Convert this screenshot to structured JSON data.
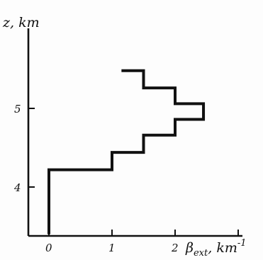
{
  "chart_data": {
    "type": "line",
    "step": true,
    "title": "",
    "ylabel": "z, km",
    "xlabel_main": "β",
    "xlabel_sub": "ext",
    "xlabel_rest": ", km",
    "xlabel_sup": "-1",
    "xlim": [
      0,
      3
    ],
    "ylim": [
      3.4,
      5.95
    ],
    "xticks": [
      0,
      1,
      2,
      3
    ],
    "xtick_labels": [
      "0",
      "1",
      "2",
      ""
    ],
    "yticks": [
      4,
      5
    ],
    "ytick_labels": [
      "4",
      "5"
    ],
    "grid": false,
    "series": [
      {
        "points": [
          [
            0.0,
            3.4
          ],
          [
            0.0,
            4.22
          ],
          [
            1.0,
            4.22
          ],
          [
            1.0,
            4.44
          ],
          [
            1.5,
            4.44
          ],
          [
            1.5,
            4.66
          ],
          [
            2.0,
            4.66
          ],
          [
            2.0,
            4.86
          ],
          [
            2.45,
            4.86
          ],
          [
            2.45,
            5.06
          ],
          [
            2.0,
            5.06
          ],
          [
            2.0,
            5.26
          ],
          [
            1.5,
            5.26
          ],
          [
            1.5,
            5.48
          ],
          [
            1.15,
            5.48
          ]
        ]
      }
    ]
  }
}
